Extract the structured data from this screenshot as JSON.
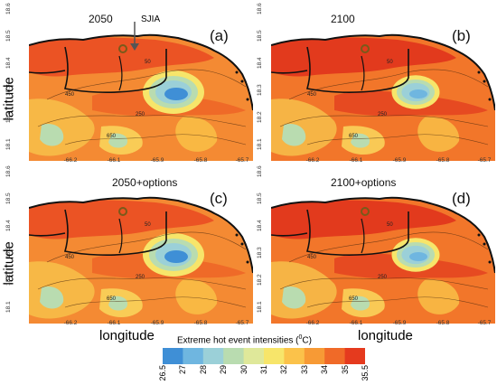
{
  "panels": [
    {
      "id": "a",
      "year": "2050",
      "letter": "(a)",
      "variant": 0
    },
    {
      "id": "b",
      "year": "2100",
      "letter": "(b)",
      "variant": 1
    },
    {
      "id": "c",
      "year": "2050+options",
      "letter": "(c)",
      "variant": 2
    },
    {
      "id": "d",
      "year": "2100+options",
      "letter": "(d)",
      "variant": 3
    }
  ],
  "sjia_label": "SJIA",
  "axis_labels": {
    "y": "latitude",
    "x": "longitude"
  },
  "lat_ticks": [
    "18.1",
    "18.2",
    "18.3",
    "18.4",
    "18.5",
    "18.6"
  ],
  "lon_ticks": [
    "-66.2",
    "-66.1",
    "-65.9",
    "-65.8",
    "-65.7"
  ],
  "contour_labels": [
    "50",
    "250",
    "450",
    "650"
  ],
  "colorbar": {
    "title_text": "Extreme hot event intensities (",
    "title_unit_sup": "0",
    "title_unit": "C)",
    "ticks": [
      "26.5",
      "27",
      "28",
      "29",
      "30",
      "31",
      "32",
      "33",
      "34",
      "35",
      "35.5"
    ],
    "colors": [
      "#3f8fd6",
      "#6fb6e0",
      "#9bd0d8",
      "#b9dcb0",
      "#dfe89a",
      "#f7e56a",
      "#fbc24a",
      "#f79a35",
      "#f06a28",
      "#e53a1e"
    ]
  }
}
